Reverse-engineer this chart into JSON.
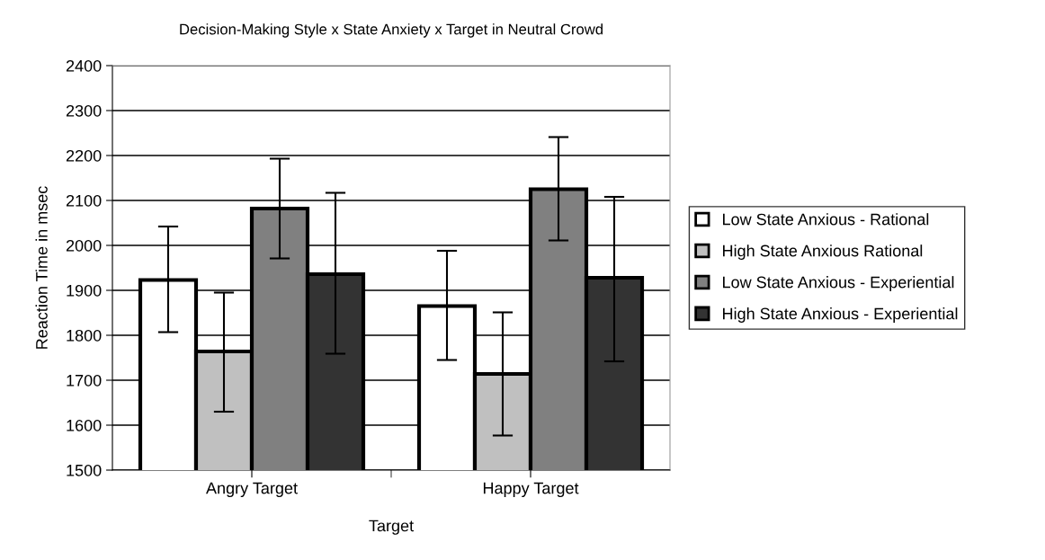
{
  "chart_data": {
    "type": "bar",
    "title": "Decision-Making Style x State Anxiety x Target in Neutral Crowd",
    "xlabel": "Target",
    "ylabel": "Reaction Time in msec",
    "categories": [
      "Angry Target",
      "Happy Target"
    ],
    "series": [
      {
        "name": "Low State Anxious - Rational",
        "color": "#ffffff",
        "values": [
          1923,
          1865
        ],
        "errors": [
          [
            1807,
            2042
          ],
          [
            1745,
            1988
          ]
        ]
      },
      {
        "name": "High State Anxious Rational",
        "color": "#c0c0c0",
        "values": [
          1764,
          1714
        ],
        "errors": [
          [
            1630,
            1895
          ],
          [
            1577,
            1851
          ]
        ]
      },
      {
        "name": "Low State Anxious - Experiential",
        "color": "#808080",
        "values": [
          2082,
          2125
        ],
        "errors": [
          [
            1971,
            2193
          ],
          [
            2011,
            2241
          ]
        ]
      },
      {
        "name": "High State Anxious - Experiential",
        "color": "#333333",
        "values": [
          1936,
          1928
        ],
        "errors": [
          [
            1759,
            2117
          ],
          [
            1742,
            2108
          ]
        ]
      }
    ],
    "ylim": [
      1500,
      2400
    ],
    "yticks": [
      1500,
      1600,
      1700,
      1800,
      1900,
      2000,
      2100,
      2200,
      2300,
      2400
    ],
    "grid": "y",
    "legend": "right"
  }
}
